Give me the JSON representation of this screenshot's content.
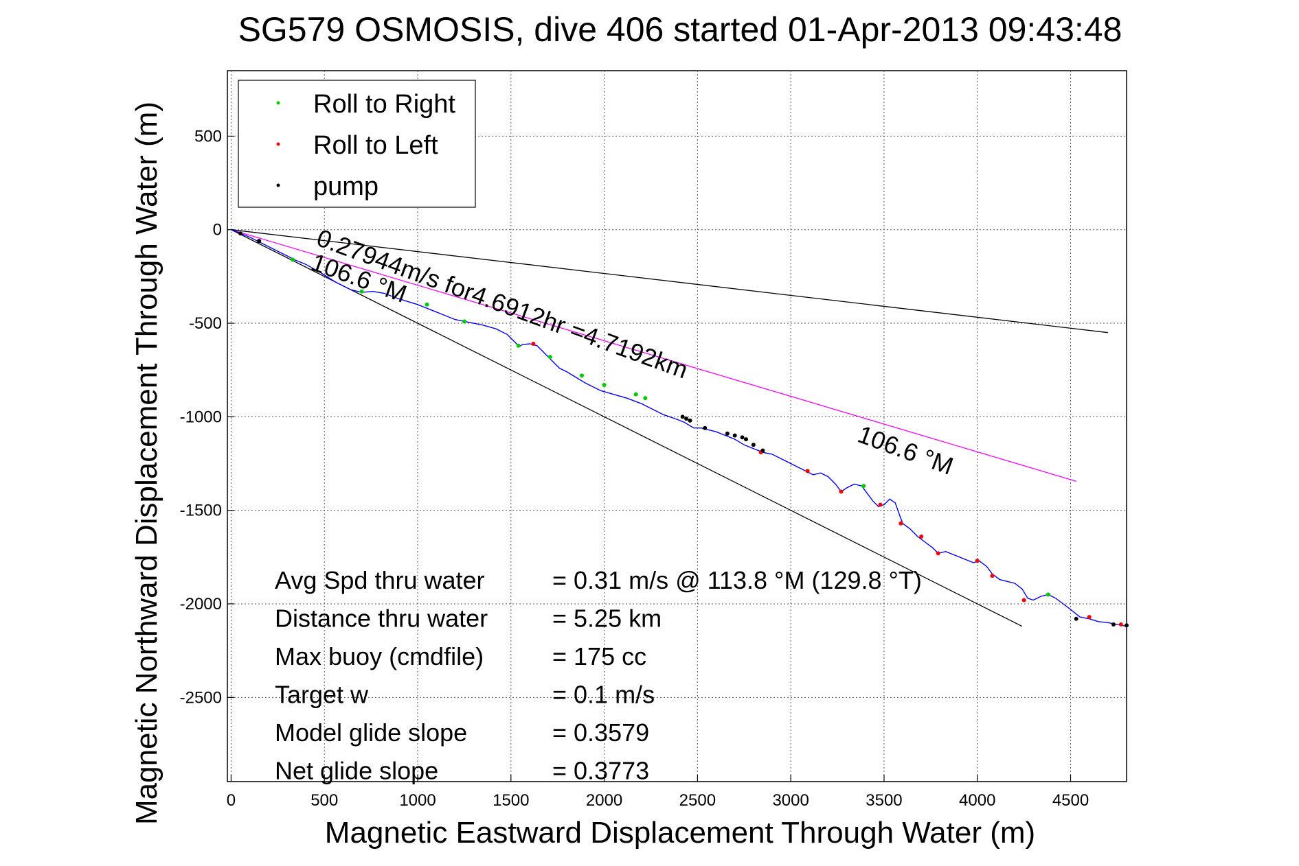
{
  "chart_data": {
    "type": "line",
    "title": "SG579 OSMOSIS, dive 406 started 01-Apr-2013 09:43:48",
    "xlabel": "Magnetic Eastward Displacement Through Water (m)",
    "ylabel": "Magnetic Northward Displacement Through Water (m)",
    "xlim": [
      -20,
      4800
    ],
    "ylim": [
      -2950,
      850
    ],
    "grid": true,
    "legend_location": "top-left",
    "xticks": [
      0,
      500,
      1000,
      1500,
      2000,
      2500,
      3000,
      3500,
      4000,
      4500
    ],
    "xtick_labels": [
      "0",
      "500",
      "1000",
      "1500",
      "2000",
      "2500",
      "3000",
      "3500",
      "4000",
      "4500"
    ],
    "yticks": [
      500,
      0,
      -500,
      -1000,
      -1500,
      -2000,
      -2500
    ],
    "ytick_labels": [
      "500",
      "0",
      "-500",
      "-1000",
      "-1500",
      "-2000",
      "-2500"
    ],
    "legend": [
      {
        "label": "Roll to Right",
        "color": "#00cc00"
      },
      {
        "label": "Roll to Left",
        "color": "#ff0000"
      },
      {
        "label": "pump",
        "color": "#000000"
      }
    ],
    "series": [
      {
        "type": "line",
        "color": "#0000ff",
        "x": [
          0,
          100,
          200,
          300,
          350,
          400,
          480,
          560,
          640,
          700,
          760,
          820,
          900,
          950,
          1000,
          1100,
          1150,
          1200,
          1250,
          1300,
          1350,
          1420,
          1480,
          1520,
          1545,
          1560,
          1600,
          1640,
          1670,
          1700,
          1720,
          1760,
          1800,
          1850,
          1900,
          1940,
          1980,
          2050,
          2120,
          2200,
          2260,
          2320,
          2380,
          2430,
          2480,
          2520,
          2600,
          2650,
          2700,
          2750,
          2800,
          2850,
          2900,
          2960,
          3020,
          3080,
          3120,
          3160,
          3200,
          3240,
          3270,
          3300,
          3340,
          3380,
          3410,
          3440,
          3470,
          3500,
          3530,
          3560,
          3585,
          3600,
          3640,
          3680,
          3720,
          3760,
          3790,
          3830,
          3880,
          3930,
          3980,
          4010,
          4050,
          4080,
          4120,
          4160,
          4200,
          4240,
          4270,
          4300,
          4340,
          4380,
          4420,
          4460,
          4500,
          4550,
          4600,
          4650,
          4700,
          4750,
          4800
        ],
        "y": [
          0,
          -40,
          -90,
          -140,
          -165,
          -185,
          -230,
          -280,
          -320,
          -335,
          -330,
          -340,
          -370,
          -385,
          -400,
          -440,
          -460,
          -480,
          -490,
          -500,
          -510,
          -530,
          -560,
          -600,
          -625,
          -615,
          -610,
          -620,
          -650,
          -680,
          -700,
          -740,
          -760,
          -790,
          -820,
          -840,
          -860,
          -880,
          -900,
          -930,
          -960,
          -990,
          -1010,
          -1030,
          -1060,
          -1060,
          -1080,
          -1100,
          -1120,
          -1150,
          -1170,
          -1190,
          -1200,
          -1230,
          -1260,
          -1290,
          -1310,
          -1300,
          -1320,
          -1360,
          -1400,
          -1380,
          -1360,
          -1370,
          -1410,
          -1450,
          -1480,
          -1470,
          -1440,
          -1460,
          -1530,
          -1570,
          -1600,
          -1640,
          -1670,
          -1700,
          -1730,
          -1720,
          -1740,
          -1760,
          -1780,
          -1770,
          -1800,
          -1840,
          -1870,
          -1880,
          -1890,
          -1920,
          -1970,
          -1980,
          -1960,
          -1950,
          -1970,
          -2000,
          -2030,
          -2070,
          -2080,
          -2095,
          -2100,
          -2110,
          -2120
        ]
      },
      {
        "type": "line",
        "color": "#ff00ff",
        "x": [
          0,
          4530
        ],
        "y": [
          0,
          -1345
        ]
      },
      {
        "type": "line",
        "color": "#000000",
        "x": [
          0,
          4700
        ],
        "y": [
          0,
          -550
        ]
      },
      {
        "type": "line",
        "color": "#000000",
        "x": [
          0,
          4240
        ],
        "y": [
          0,
          -2120
        ]
      }
    ],
    "markers": {
      "right": {
        "color": "#00cc00",
        "x": [
          330,
          700,
          1050,
          1250,
          1540,
          1710,
          1880,
          2000,
          2170,
          2220,
          3390,
          4380
        ],
        "y": [
          -160,
          -330,
          -400,
          -490,
          -620,
          -680,
          -780,
          -830,
          -880,
          -900,
          -1370,
          -1950
        ]
      },
      "left": {
        "color": "#ff0000",
        "x": [
          1620,
          2840,
          3090,
          3270,
          3480,
          3590,
          3700,
          3790,
          4000,
          4080,
          4250,
          4600,
          4770
        ],
        "y": [
          -610,
          -1190,
          -1290,
          -1400,
          -1470,
          -1570,
          -1640,
          -1730,
          -1770,
          -1850,
          -1980,
          -2070,
          -2110
        ]
      },
      "pump": {
        "color": "#000000",
        "x": [
          50,
          150,
          2420,
          2440,
          2460,
          2540,
          2660,
          2700,
          2740,
          2760,
          2800,
          2850,
          4530,
          4730,
          4800
        ],
        "y": [
          -20,
          -60,
          -1000,
          -1010,
          -1020,
          -1060,
          -1090,
          -1100,
          -1110,
          -1120,
          -1150,
          -1180,
          -2080,
          -2110,
          -2115
        ]
      }
    },
    "annotations": [
      {
        "text": "0.27944m/s for4.6912hr =4.7192km",
        "x": 450,
        "y": -80,
        "angle": 20
      },
      {
        "text": "106.6 °M",
        "x": 420,
        "y": -210,
        "angle": 20
      },
      {
        "text": "106.6 °M",
        "x": 3350,
        "y": -1130,
        "angle": 20
      }
    ],
    "stats": [
      {
        "label": "Avg Spd thru water",
        "value": "=  0.31 m/s @ 113.8 °M (129.8 °T)"
      },
      {
        "label": "Distance thru water",
        "value": "=  5.25 km"
      },
      {
        "label": "Max buoy (cmdfile)",
        "value": "= 175 cc"
      },
      {
        "label": "Target w",
        "value": "= 0.1 m/s"
      },
      {
        "label": "Model glide slope",
        "value": "= 0.3579"
      },
      {
        "label": "Net glide slope",
        "value": "= 0.3773"
      }
    ]
  }
}
